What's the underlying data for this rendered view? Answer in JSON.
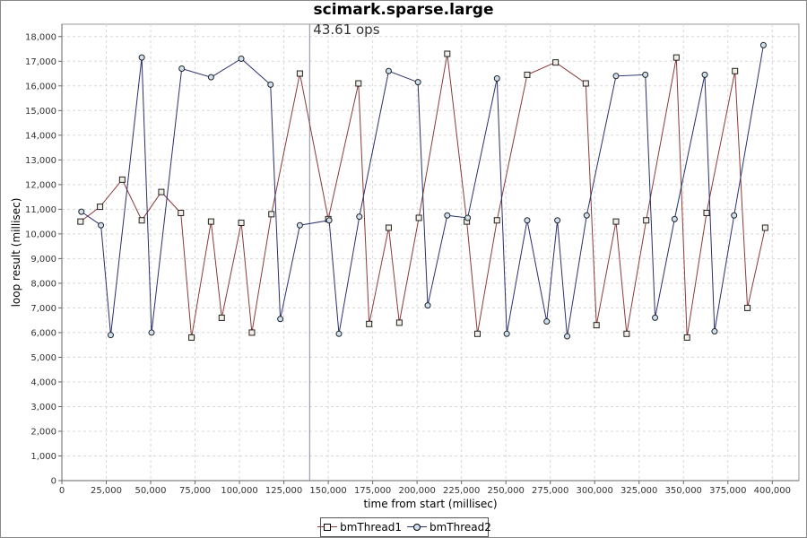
{
  "chart_data": {
    "type": "line",
    "title": "scimark.sparse.large",
    "xlabel": "time from start (millisec)",
    "ylabel": "loop result (millisec)",
    "xlim": [
      0,
      415000
    ],
    "ylim": [
      0,
      18500
    ],
    "x_ticks": [
      0,
      25000,
      50000,
      75000,
      100000,
      125000,
      150000,
      175000,
      200000,
      225000,
      250000,
      275000,
      300000,
      325000,
      350000,
      375000,
      400000
    ],
    "x_tick_labels": [
      "0",
      "25,000",
      "50,000",
      "75,000",
      "100,000",
      "125,000",
      "150,000",
      "175,000",
      "200,000",
      "225,000",
      "250,000",
      "275,000",
      "300,000",
      "325,000",
      "350,000",
      "375,000",
      "400,000"
    ],
    "y_ticks": [
      0,
      1000,
      2000,
      3000,
      4000,
      5000,
      6000,
      7000,
      8000,
      9000,
      10000,
      11000,
      12000,
      13000,
      14000,
      15000,
      16000,
      17000,
      18000
    ],
    "y_tick_labels": [
      "0",
      "1,000",
      "2,000",
      "3,000",
      "4,000",
      "5,000",
      "6,000",
      "7,000",
      "8,000",
      "9,000",
      "10,000",
      "11,000",
      "12,000",
      "13,000",
      "14,000",
      "15,000",
      "16,000",
      "17,000",
      "18,000"
    ],
    "grid": true,
    "legend_position": "bottom",
    "marker_annotation": {
      "x": 139500,
      "label": "43.61 ops"
    },
    "series": [
      {
        "name": "bmThread1",
        "color": "#8b3a3a",
        "marker": "square",
        "x": [
          10500,
          21500,
          34000,
          45000,
          56000,
          67000,
          73000,
          84000,
          90000,
          101000,
          107000,
          118000,
          134000,
          150000,
          167000,
          173000,
          184000,
          190000,
          201000,
          217000,
          228000,
          234000,
          245000,
          262000,
          278000,
          295000,
          301000,
          312000,
          318000,
          329000,
          346000,
          352000,
          363000,
          379000,
          386000,
          396000
        ],
        "y": [
          10500,
          11100,
          12200,
          10550,
          11700,
          10850,
          5800,
          10500,
          6600,
          10450,
          6000,
          10800,
          16500,
          10600,
          16100,
          6350,
          10250,
          6400,
          10650,
          17300,
          10500,
          5950,
          10550,
          16450,
          16950,
          16100,
          6300,
          10500,
          5950,
          10550,
          17150,
          5800,
          10850,
          16600,
          7000,
          10250
        ]
      },
      {
        "name": "bmThread2",
        "color": "#2a2f6e",
        "marker": "circle",
        "x": [
          11000,
          22000,
          27500,
          45000,
          50500,
          67500,
          84000,
          101000,
          117500,
          123000,
          134000,
          150500,
          156000,
          167500,
          184000,
          200500,
          206000,
          217000,
          228500,
          245000,
          250500,
          262000,
          273000,
          279000,
          284500,
          295500,
          312000,
          328500,
          334000,
          345000,
          362000,
          367500,
          378500,
          395000
        ],
        "y": [
          10900,
          10350,
          5900,
          17150,
          6000,
          16700,
          16350,
          17100,
          16050,
          6550,
          10350,
          10550,
          5950,
          10700,
          16600,
          16150,
          7100,
          10750,
          10650,
          16300,
          5950,
          10550,
          6450,
          10550,
          5850,
          10750,
          16400,
          16450,
          6600,
          10600,
          16450,
          6050,
          10750,
          17650
        ]
      }
    ]
  }
}
